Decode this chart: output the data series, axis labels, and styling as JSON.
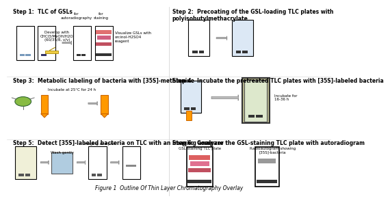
{
  "title": "Figure 1  Outline Of Thin Layer Chromatography Overlay",
  "bg_color": "#ffffff",
  "step1_title": "Step 1:  TLC of GSLs",
  "step2_title": "Step 2:  Precoating of the GSL-loading TLC plates with\npolyisobutylmethacrylate",
  "step3_title": "Step 3:  Metabolic labeling of bacteria with [35S]-methionine",
  "step4_title": "Step 4:  Incubate the pretreated TLC plates with [35S]-labeled bacteria",
  "step5_title": "Step 5:  Detect [35S]-labeled bacteria on TLC with an imaging analyzer",
  "step6_title": "Step 6:  Compare the GSL-staining TLC plate with autoradiogram",
  "develop_text": "Develop with\nCHCl3/MeOH/H2O\n(60/35/8, v/v)",
  "visualize_text": "Visualize GSLs with\norcinol-H2SO4\nreagent",
  "incubate3_text": "Incubate at 25°C for 24 h",
  "incubate4_text": "Incubate for\n16-36 h",
  "wash_text": "Wash gently",
  "imaging_text": "Imaging analyzer",
  "gsl_label": "GSL-staining TLC plate",
  "radio_label": "Radioautogram showing\n[35S]-bacteria",
  "for_autoradiography": "for\nautoradiography",
  "for_staining": "for\nstaining",
  "arrow_color": "#999999",
  "step_fontsize": 5.5,
  "label_fontsize": 4.5,
  "annot_fontsize": 4.0,
  "title_fontsize": 5.5
}
